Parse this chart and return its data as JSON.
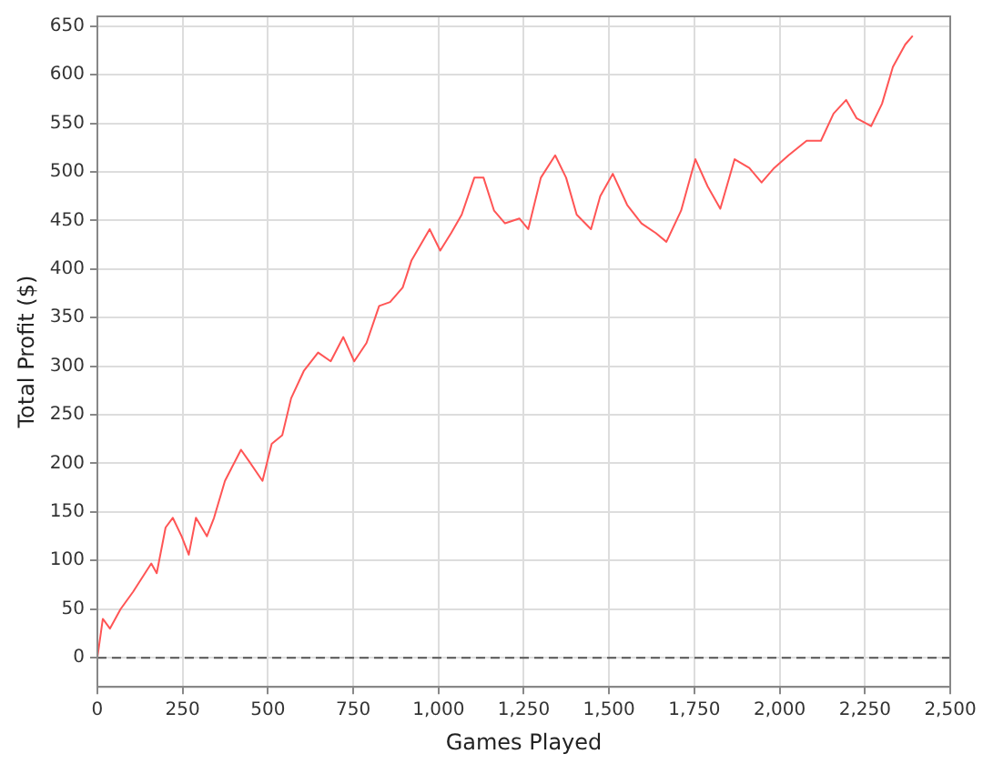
{
  "chart_data": {
    "type": "line",
    "xlabel": "Games Played",
    "ylabel": "Total Profit ($)",
    "x": [
      0,
      16,
      37,
      68,
      105,
      158,
      174,
      200,
      221,
      247,
      268,
      289,
      321,
      342,
      374,
      421,
      447,
      484,
      511,
      542,
      568,
      605,
      647,
      684,
      721,
      753,
      789,
      826,
      858,
      895,
      921,
      974,
      1005,
      1037,
      1068,
      1105,
      1132,
      1163,
      1195,
      1237,
      1263,
      1300,
      1342,
      1374,
      1405,
      1447,
      1474,
      1511,
      1553,
      1595,
      1637,
      1668,
      1711,
      1753,
      1789,
      1826,
      1868,
      1911,
      1947,
      1984,
      2026,
      2079,
      2121,
      2158,
      2195,
      2226,
      2268,
      2300,
      2332,
      2368,
      2390
    ],
    "series": [
      {
        "color": "#ff5555",
        "values": [
          0,
          40,
          30,
          50,
          68,
          97,
          87,
          134,
          144,
          125,
          106,
          144,
          125,
          144,
          182,
          214,
          201,
          182,
          220,
          229,
          267,
          295,
          314,
          305,
          330,
          305,
          324,
          362,
          366,
          381,
          409,
          441,
          419,
          437,
          456,
          494,
          494,
          460,
          447,
          452,
          441,
          494,
          517,
          494,
          456,
          441,
          475,
          498,
          466,
          447,
          437,
          428,
          460,
          513,
          485,
          462,
          513,
          504,
          489,
          504,
          517,
          532,
          532,
          560,
          574,
          555,
          547,
          570,
          608,
          631,
          640
        ]
      }
    ],
    "xlim": [
      0,
      2500
    ],
    "ylim": [
      -30,
      660
    ],
    "xticks": [
      0,
      250,
      500,
      750,
      {
        "value": 1000,
        "label": "1,000"
      },
      {
        "value": 1250,
        "label": "1,250"
      },
      {
        "value": 1500,
        "label": "1,500"
      },
      {
        "value": 1750,
        "label": "1,750"
      },
      {
        "value": 2000,
        "label": "2,000"
      },
      {
        "value": 2250,
        "label": "2,250"
      },
      {
        "value": 2500,
        "label": "2,500"
      }
    ],
    "yticks": [
      0,
      50,
      100,
      150,
      200,
      250,
      300,
      350,
      400,
      450,
      500,
      550,
      600,
      650
    ],
    "ref_lines": [
      {
        "axis": "y",
        "value": 0,
        "color": "#555555",
        "line_style": "dashed"
      }
    ],
    "grid": true,
    "legend": false,
    "marker": "none",
    "line_style": "solid"
  }
}
